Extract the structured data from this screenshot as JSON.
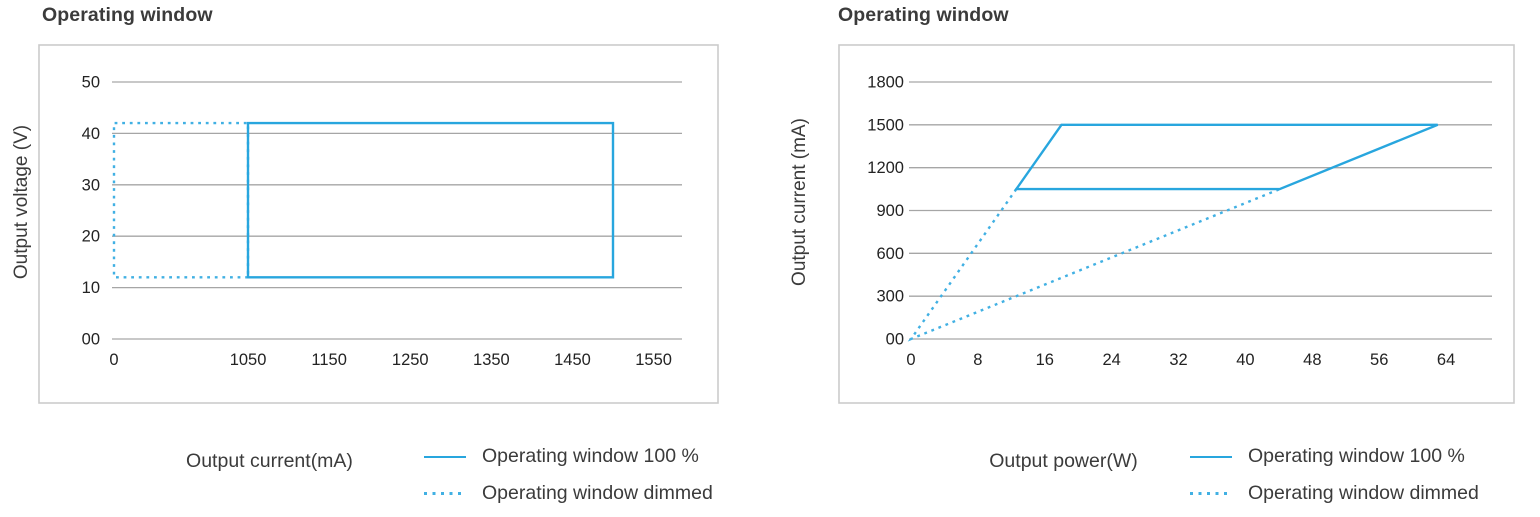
{
  "colors": {
    "solid_line": "#28a6de",
    "dotted_line": "#41b0e3",
    "grid": "#a6a6a6",
    "plot_border": "#cbcbcb",
    "text": "#3b3b3b",
    "tick_text": "#232323"
  },
  "legend": [
    {
      "label": "Operating window 100 %",
      "style": "solid"
    },
    {
      "label": "Operating window dimmed",
      "style": "dotted"
    }
  ],
  "chart_data": [
    {
      "type": "line",
      "title": "Operating window",
      "x_axis": {
        "label": "Output current(mA)",
        "ticks": [
          0,
          1050,
          1150,
          1250,
          1350,
          1450,
          1550
        ],
        "tick_labels": [
          "0",
          "1050",
          "1150",
          "1250",
          "1350",
          "1450",
          "1550"
        ],
        "scale_points": [
          [
            0,
            0
          ],
          [
            1050,
            0.236
          ],
          [
            1550,
            0.95
          ]
        ]
      },
      "y_axis": {
        "label": "Output voltage (V)",
        "ticks": [
          0,
          10,
          20,
          30,
          40,
          50
        ],
        "tick_labels": [
          "00",
          "10",
          "20",
          "30",
          "40",
          "50"
        ],
        "range": [
          0,
          50
        ]
      },
      "grid": "horizontal",
      "series": [
        {
          "name": "Operating window 100 %",
          "style": "solid",
          "closed": true,
          "points": [
            [
              1050,
              12
            ],
            [
              1050,
              42
            ],
            [
              1500,
              42
            ],
            [
              1500,
              12
            ]
          ]
        },
        {
          "name": "Operating window dimmed",
          "style": "dotted",
          "closed": true,
          "points": [
            [
              1050,
              12
            ],
            [
              0,
              12
            ],
            [
              0,
              42
            ],
            [
              1050,
              42
            ]
          ]
        }
      ]
    },
    {
      "type": "line",
      "title": "Operating window",
      "x_axis": {
        "label": "Output power(W)",
        "ticks": [
          0,
          8,
          16,
          24,
          32,
          40,
          48,
          56,
          64
        ],
        "tick_labels": [
          "0",
          "8",
          "16",
          "24",
          "32",
          "40",
          "48",
          "56",
          "64"
        ],
        "scale_points": [
          [
            0,
            0
          ],
          [
            64,
            0.921
          ]
        ]
      },
      "y_axis": {
        "label": "Output current (mA)",
        "ticks": [
          0,
          300,
          600,
          900,
          1200,
          1500,
          1800
        ],
        "tick_labels": [
          "00",
          "300",
          "600",
          "900",
          "1200",
          "1500",
          "1800"
        ],
        "range": [
          0,
          1800
        ]
      },
      "grid": "horizontal",
      "series": [
        {
          "name": "Operating window 100 %",
          "style": "solid",
          "closed": true,
          "points": [
            [
              12.6,
              1050
            ],
            [
              18,
              1500
            ],
            [
              63,
              1500
            ],
            [
              44.1,
              1050
            ]
          ]
        },
        {
          "name": "Operating window dimmed",
          "style": "dotted",
          "closed": false,
          "points": [
            [
              12.6,
              1050
            ],
            [
              0,
              0
            ],
            [
              44.1,
              1050
            ]
          ]
        }
      ]
    }
  ]
}
